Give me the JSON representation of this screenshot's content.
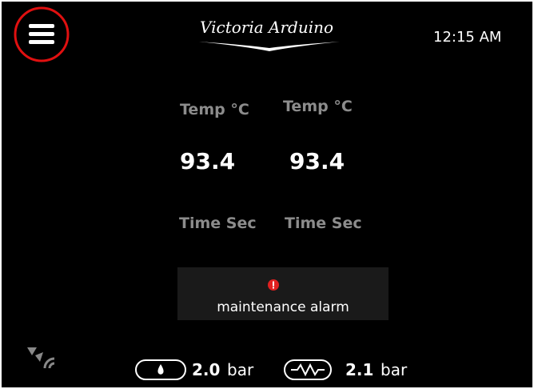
{
  "header": {
    "logo": "Victoria Arduino",
    "time": "12:15 AM"
  },
  "groups": [
    {
      "temp_label": "Temp °C",
      "temp_value": "93.4",
      "time_label": "Time Sec"
    },
    {
      "temp_label": "Temp °C",
      "temp_value": "93.4",
      "time_label": "Time Sec"
    }
  ],
  "alarm": {
    "text": "maintenance alarm"
  },
  "footer": {
    "pressure_1": {
      "value": "2.0",
      "unit": "bar"
    },
    "pressure_2": {
      "value": "2.1",
      "unit": "bar"
    }
  }
}
